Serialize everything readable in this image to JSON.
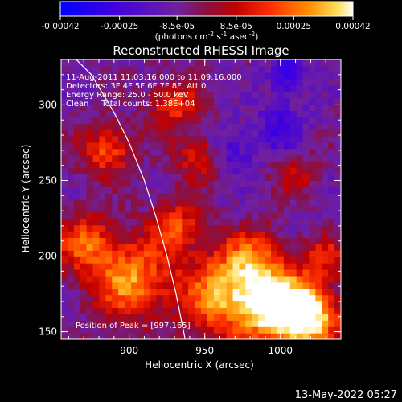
{
  "chart_data": {
    "type": "heatmap",
    "title": "Reconstructed RHESSI Image",
    "xlabel": "Heliocentric X (arcsec)",
    "ylabel": "Heliocentric Y (arcsec)",
    "xlim": [
      855,
      1040
    ],
    "ylim": [
      145,
      330
    ],
    "x_ticks": [
      900,
      950,
      1000
    ],
    "y_ticks": [
      150,
      200,
      250,
      300
    ],
    "colorbar": {
      "range": [
        -0.00042,
        0.00042
      ],
      "ticks": [
        "-0.00042",
        "-0.00025",
        "-8.5e-05",
        "8.5e-05",
        "0.00025",
        "0.00042"
      ],
      "tick_values": [
        -0.00042,
        -0.00025,
        -8.5e-05,
        8.5e-05,
        0.00025,
        0.00042
      ],
      "unit_label": "(photons cm",
      "unit_sup1": "-2",
      "unit_mid1": " s",
      "unit_sup2": "-1",
      "unit_mid2": " asec",
      "unit_sup3": "-2",
      "unit_end": ")",
      "colors": [
        "#0000ff",
        "#6a00d0",
        "#6d2aa0",
        "#b80000",
        "#ff2a00",
        "#ff8000",
        "#ffd040",
        "#ffffff"
      ]
    },
    "annotations": [
      "11-Aug-2011 11:03:16.000 to 11:09:16.000",
      "Detectors: 3F 4F 5F 6F 7F 8F, Att 0",
      "Energy Range: 25.0 - 50.0 keV",
      "Clean     Total counts: 1.38E+04"
    ],
    "peak_label": "Position of Peak = [997,165]",
    "peak": [
      997,
      165
    ],
    "limb_curve": [
      [
        860,
        335
      ],
      [
        875,
        320
      ],
      [
        890,
        295
      ],
      [
        900,
        275
      ],
      [
        910,
        250
      ],
      [
        918,
        225
      ],
      [
        925,
        200
      ],
      [
        931,
        175
      ],
      [
        936,
        150
      ],
      [
        938,
        140
      ]
    ],
    "hot_spots": [
      {
        "x": 997,
        "y": 168,
        "amp": 1.0,
        "r": 18
      },
      {
        "x": 1020,
        "y": 160,
        "amp": 0.85,
        "r": 14
      },
      {
        "x": 960,
        "y": 175,
        "amp": 0.7,
        "r": 20
      },
      {
        "x": 900,
        "y": 185,
        "amp": 0.75,
        "r": 18
      },
      {
        "x": 870,
        "y": 210,
        "amp": 0.55,
        "r": 14
      },
      {
        "x": 885,
        "y": 270,
        "amp": 0.6,
        "r": 12
      },
      {
        "x": 930,
        "y": 300,
        "amp": 0.5,
        "r": 12
      },
      {
        "x": 945,
        "y": 265,
        "amp": 0.45,
        "r": 10
      },
      {
        "x": 930,
        "y": 220,
        "amp": 0.55,
        "r": 12
      },
      {
        "x": 980,
        "y": 200,
        "amp": 0.45,
        "r": 14
      },
      {
        "x": 1030,
        "y": 200,
        "amp": 0.4,
        "r": 10
      },
      {
        "x": 1010,
        "y": 255,
        "amp": 0.35,
        "r": 10
      }
    ],
    "cold_spots": [
      {
        "x": 1005,
        "y": 320,
        "amp": 0.6,
        "r": 8
      },
      {
        "x": 970,
        "y": 270,
        "amp": 0.35,
        "r": 10
      },
      {
        "x": 1000,
        "y": 285,
        "amp": 0.4,
        "r": 12
      }
    ]
  },
  "footer": {
    "timestamp": "13-May-2022 05:27"
  }
}
